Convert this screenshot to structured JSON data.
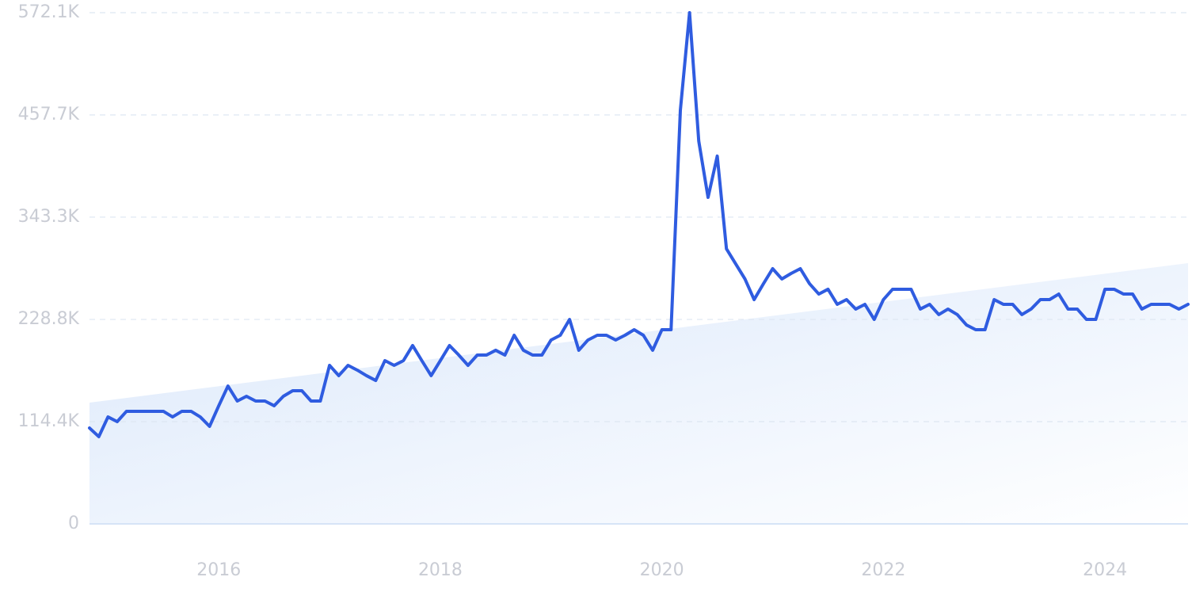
{
  "chart_data": {
    "type": "line",
    "x": [
      2014.833,
      2014.917,
      2015,
      2015.083,
      2015.167,
      2015.25,
      2015.333,
      2015.417,
      2015.5,
      2015.583,
      2015.667,
      2015.75,
      2015.833,
      2015.917,
      2016,
      2016.083,
      2016.167,
      2016.25,
      2016.333,
      2016.417,
      2016.5,
      2016.583,
      2016.667,
      2016.75,
      2016.833,
      2016.917,
      2017,
      2017.083,
      2017.167,
      2017.25,
      2017.333,
      2017.417,
      2017.5,
      2017.583,
      2017.667,
      2017.75,
      2017.833,
      2017.917,
      2018,
      2018.083,
      2018.167,
      2018.25,
      2018.333,
      2018.417,
      2018.5,
      2018.583,
      2018.667,
      2018.75,
      2018.833,
      2018.917,
      2019,
      2019.083,
      2019.167,
      2019.25,
      2019.333,
      2019.417,
      2019.5,
      2019.583,
      2019.667,
      2019.75,
      2019.833,
      2019.917,
      2020,
      2020.083,
      2020.167,
      2020.25,
      2020.333,
      2020.417,
      2020.5,
      2020.583,
      2020.667,
      2020.75,
      2020.833,
      2020.917,
      2021,
      2021.083,
      2021.167,
      2021.25,
      2021.333,
      2021.417,
      2021.5,
      2021.583,
      2021.667,
      2021.75,
      2021.833,
      2021.917,
      2022,
      2022.083,
      2022.167,
      2022.25,
      2022.333,
      2022.417,
      2022.5,
      2022.583,
      2022.667,
      2022.75,
      2022.833,
      2022.917,
      2023,
      2023.083,
      2023.167,
      2023.25,
      2023.333,
      2023.417,
      2023.5,
      2023.583,
      2023.667,
      2023.75,
      2023.833,
      2023.917,
      2024,
      2024.083,
      2024.167,
      2024.25,
      2024.333,
      2024.417,
      2024.5,
      2024.583,
      2024.667,
      2024.75
    ],
    "series": [
      {
        "color": "#2f5ce0",
        "values": [
          107300,
          97600,
          119700,
          114400,
          126000,
          126000,
          126000,
          126000,
          126000,
          119700,
          126000,
          126000,
          119700,
          109100,
          132200,
          154300,
          137500,
          142800,
          137500,
          137500,
          132200,
          142800,
          149000,
          149000,
          137500,
          137500,
          177400,
          165900,
          177400,
          172100,
          165900,
          160500,
          182700,
          177400,
          182700,
          199600,
          182700,
          165900,
          182700,
          199600,
          188900,
          177400,
          188900,
          188900,
          194300,
          188900,
          211100,
          194300,
          188900,
          188900,
          205800,
          211100,
          228800,
          194300,
          205800,
          211100,
          211100,
          205800,
          211100,
          217300,
          211100,
          194300,
          217300,
          217300,
          463000,
          572100,
          428400,
          365400,
          411600,
          307800,
          290900,
          274100,
          251000,
          268800,
          285600,
          274100,
          280300,
          285600,
          268800,
          257200,
          262600,
          245700,
          251000,
          240400,
          245700,
          228800,
          251000,
          262600,
          262600,
          262600,
          240400,
          245700,
          234200,
          240400,
          234200,
          222600,
          217300,
          217300,
          251000,
          245700,
          245700,
          234200,
          240400,
          251000,
          251000,
          257200,
          240400,
          240400,
          228800,
          228800,
          262600,
          262600,
          257200,
          257200,
          240400,
          245700,
          245700,
          245700,
          240400,
          245700
        ]
      }
    ],
    "trend": {
      "color": "#dbe8fb",
      "x": [
        2014.833,
        2024.75
      ],
      "values": [
        135700,
        291800
      ]
    },
    "xlim": [
      2014.833,
      2024.75
    ],
    "xticks": [
      2016,
      2018,
      2020,
      2022,
      2024
    ],
    "ylim": [
      0,
      572100
    ],
    "yticks": [
      0,
      {
        "value": 114400,
        "label": "114.4K"
      },
      {
        "value": 228800,
        "label": "228.8K"
      },
      {
        "value": 343300,
        "label": "343.3K"
      },
      {
        "value": 457700,
        "label": "457.7K"
      },
      {
        "value": 572100,
        "label": "572.1K"
      }
    ],
    "grid": true
  }
}
